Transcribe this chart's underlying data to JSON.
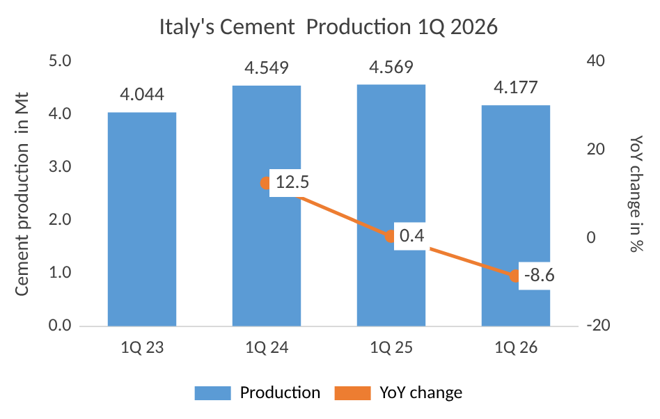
{
  "chart_data": {
    "type": "bar",
    "title": "Italy's Cement  Production 1Q 2026",
    "ylabel": "Cement production  in Mt",
    "y2label": "YoY change in %",
    "categories": [
      "1Q 23",
      "1Q 24",
      "1Q 25",
      "1Q 26"
    ],
    "series": [
      {
        "name": "Production",
        "color": "#5b9bd5",
        "values": [
          4.044,
          4.549,
          4.569,
          4.177
        ]
      },
      {
        "name": "YoY change",
        "type": "line",
        "axis": "y2",
        "color": "#ed7d31",
        "values": [
          null,
          12.5,
          0.4,
          -8.6
        ]
      }
    ],
    "ylim": [
      0,
      5
    ],
    "yticks": [
      {
        "value": 0,
        "label": "0.0"
      },
      {
        "value": 1,
        "label": "1.0"
      },
      {
        "value": 2,
        "label": "2.0"
      },
      {
        "value": 3,
        "label": "3.0"
      },
      {
        "value": 4,
        "label": "4.0"
      },
      {
        "value": 5,
        "label": "5.0"
      }
    ],
    "y2lim": [
      -20,
      40
    ],
    "y2ticks": [
      -20,
      0,
      20,
      40
    ],
    "data_labels": true,
    "legend": "bottom",
    "grid": false,
    "marker": "circle"
  }
}
